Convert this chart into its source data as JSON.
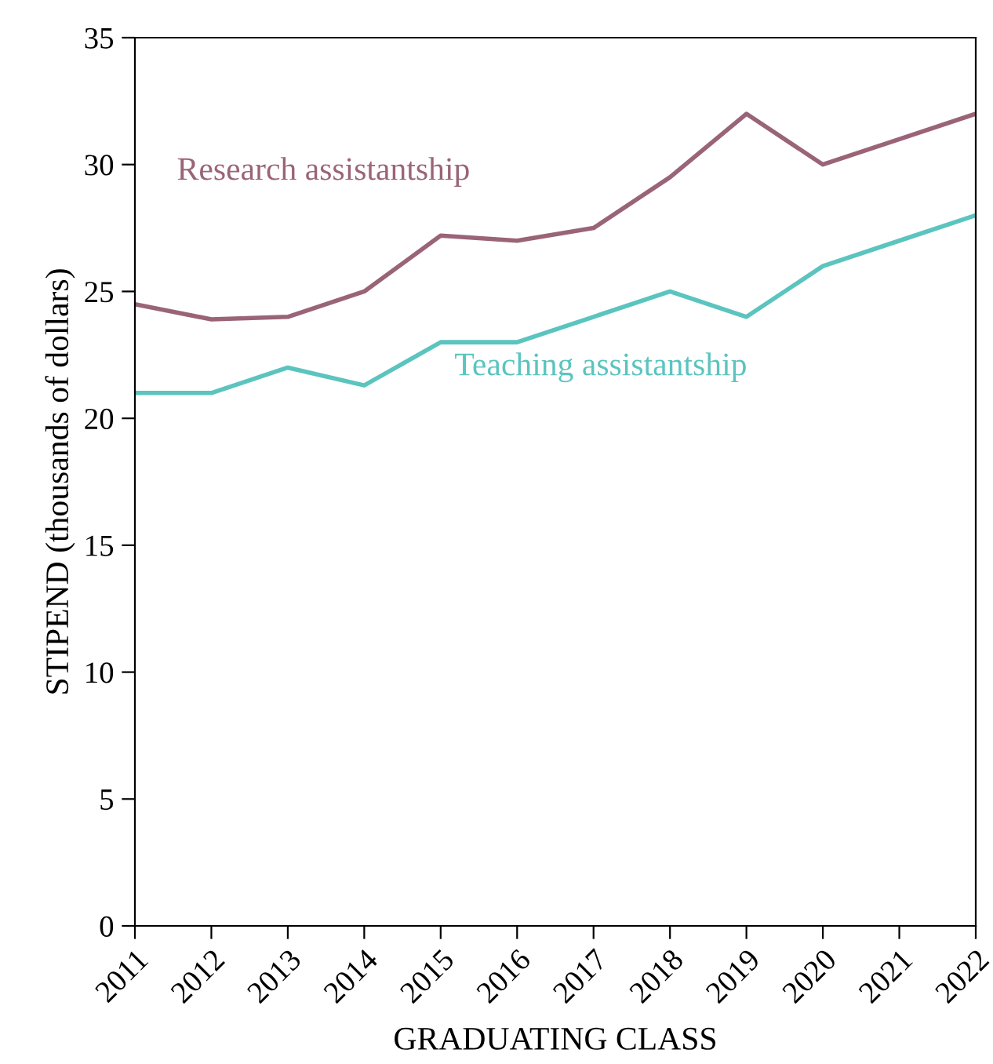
{
  "chart_data": {
    "type": "line",
    "xlabel": "GRADUATING CLASS",
    "ylabel": "STIPEND (thousands of dollars)",
    "x": [
      2011,
      2012,
      2013,
      2014,
      2015,
      2016,
      2017,
      2018,
      2019,
      2020,
      2021,
      2022
    ],
    "series": [
      {
        "name": "Research assistantship",
        "color": "#9a6478",
        "values": [
          24.5,
          23.9,
          24.0,
          25.0,
          27.2,
          27.0,
          27.5,
          29.5,
          32.0,
          30.0,
          31.0,
          32.0
        ]
      },
      {
        "name": "Teaching assistantship",
        "color": "#5bc4bf",
        "values": [
          21.0,
          21.0,
          22.0,
          21.3,
          23.0,
          23.0,
          24.0,
          25.0,
          24.0,
          26.0,
          27.0,
          28.0
        ]
      }
    ],
    "xlim": [
      2011,
      2022
    ],
    "xticks": [
      2011,
      2012,
      2013,
      2014,
      2015,
      2016,
      2017,
      2018,
      2019,
      2020,
      2021,
      2022
    ],
    "ylim": [
      0,
      35
    ],
    "yticks": [
      0,
      5,
      10,
      15,
      20,
      25,
      30,
      35
    ],
    "grid": false,
    "legend": false,
    "marker": "none",
    "line_style": "solid"
  }
}
